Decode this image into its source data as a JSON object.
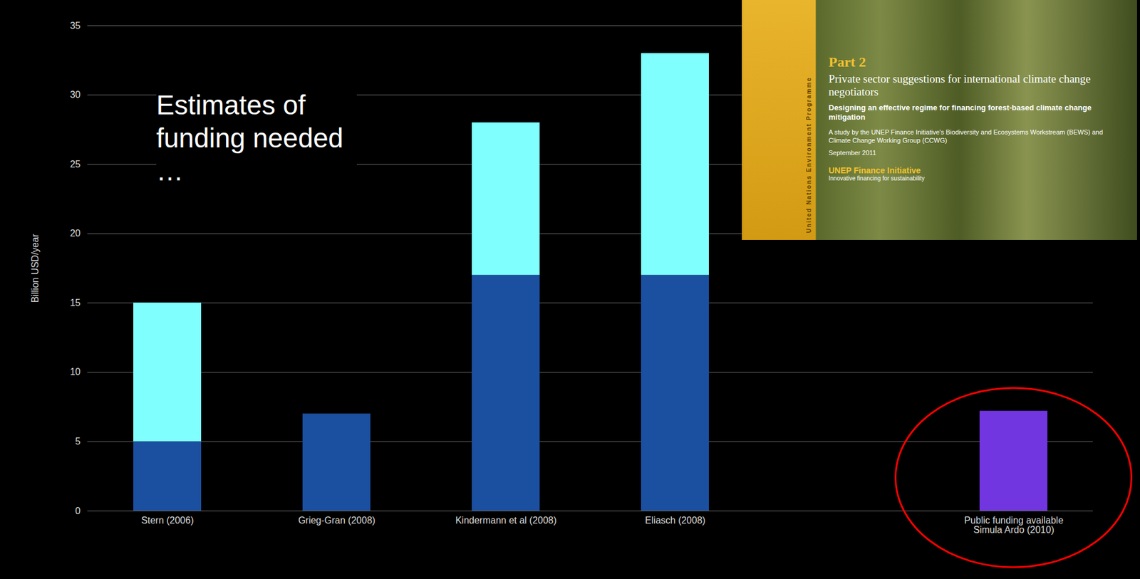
{
  "chart_data": {
    "type": "bar",
    "stacked": true,
    "annotations": [
      "Estimates of funding needed …"
    ],
    "inset": [
      "Part 2",
      "Private sector suggestions for international climate change negotiators",
      "Designing an effective regime for financing forest-based climate change mitigation",
      "A study by the UNEP Finance Initiative's Biodiversity and Ecosystems Workstream (BEWS) and Climate Change Working Group (CCWG)",
      "September 2011",
      "UNEP Finance Initiative",
      "Innovative financing for sustainability",
      "United Nations Environment Programme"
    ],
    "categories": [
      "Stern (2006)",
      "Grieg-Gran (2008)",
      "Kindermann et al (2008)",
      "Eliasch (2008)",
      null,
      "Public funding available Simula Ardo (2010)"
    ],
    "series": [
      {
        "colors": [
          "#1b4fa0",
          "#1b4fa0",
          "#1b4fa0",
          "#1b4fa0",
          "#1b4fa0",
          "#7236e0"
        ],
        "values": [
          5,
          7,
          17,
          17,
          null,
          7.2
        ]
      },
      {
        "color": "#80ffff",
        "values": [
          10,
          null,
          11,
          16,
          null,
          null
        ]
      }
    ],
    "ylabel": "Billion USD/year",
    "ylim": [
      0,
      35
    ],
    "yticks": [
      0,
      5,
      10,
      15,
      20,
      25,
      30,
      35
    ],
    "grid": true
  }
}
